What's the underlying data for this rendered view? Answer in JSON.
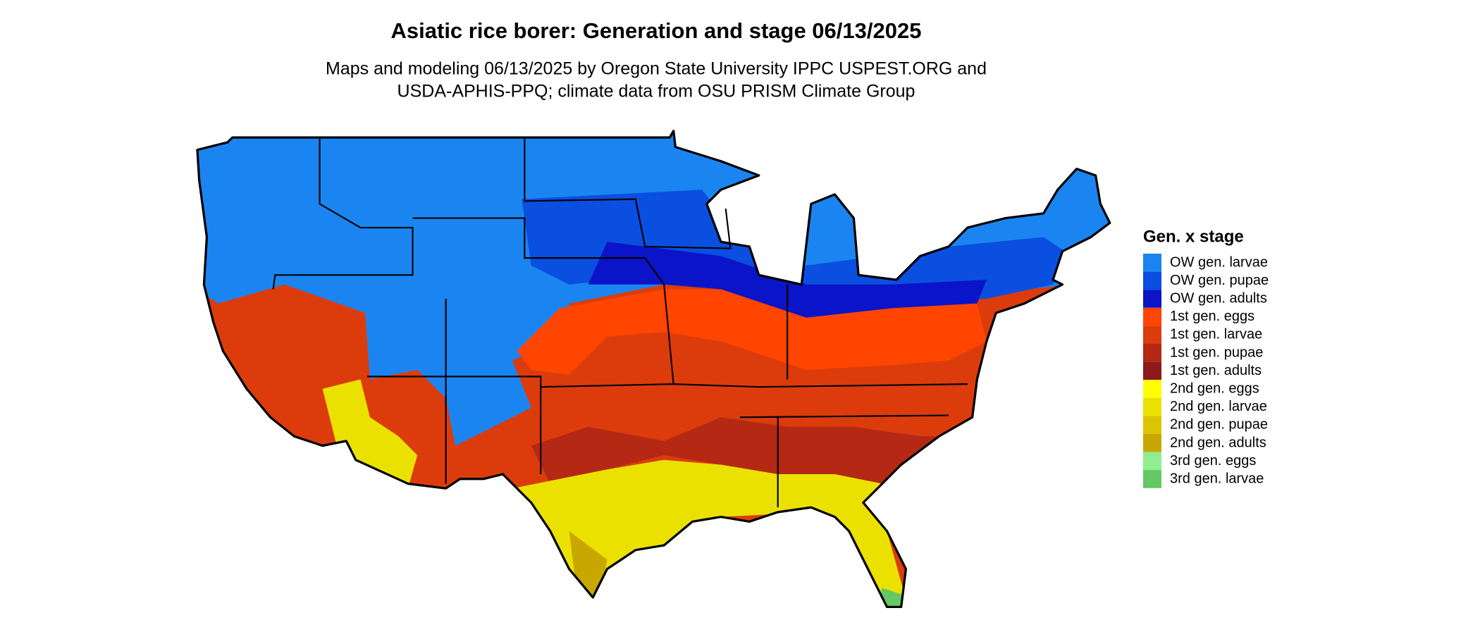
{
  "header": {
    "title": "Asiatic rice borer: Generation and stage 06/13/2025",
    "subtitle_lines": [
      "Maps and modeling 06/13/2025 by Oregon State University IPPC USPEST.ORG and",
      "USDA-APHIS-PPQ; climate data from OSU PRISM Climate Group"
    ]
  },
  "legend": {
    "title": "Gen. x stage",
    "items": [
      {
        "label": "OW gen. larvae",
        "color": "#1a85f0"
      },
      {
        "label": "OW gen. pupae",
        "color": "#0a4fe0"
      },
      {
        "label": "OW gen. adults",
        "color": "#0a14c8"
      },
      {
        "label": "1st gen. eggs",
        "color": "#ff4500"
      },
      {
        "label": "1st gen. larvae",
        "color": "#dc3c0c"
      },
      {
        "label": "1st gen. pupae",
        "color": "#b42814"
      },
      {
        "label": "1st gen. adults",
        "color": "#8c1a1a"
      },
      {
        "label": "2nd gen. eggs",
        "color": "#ffff00"
      },
      {
        "label": "2nd gen. larvae",
        "color": "#ebe100"
      },
      {
        "label": "2nd gen. pupae",
        "color": "#dcc400"
      },
      {
        "label": "2nd gen. adults",
        "color": "#c8a800"
      },
      {
        "label": "3rd gen. eggs",
        "color": "#90ee90"
      },
      {
        "label": "3rd gen. larvae",
        "color": "#64c864"
      }
    ]
  }
}
